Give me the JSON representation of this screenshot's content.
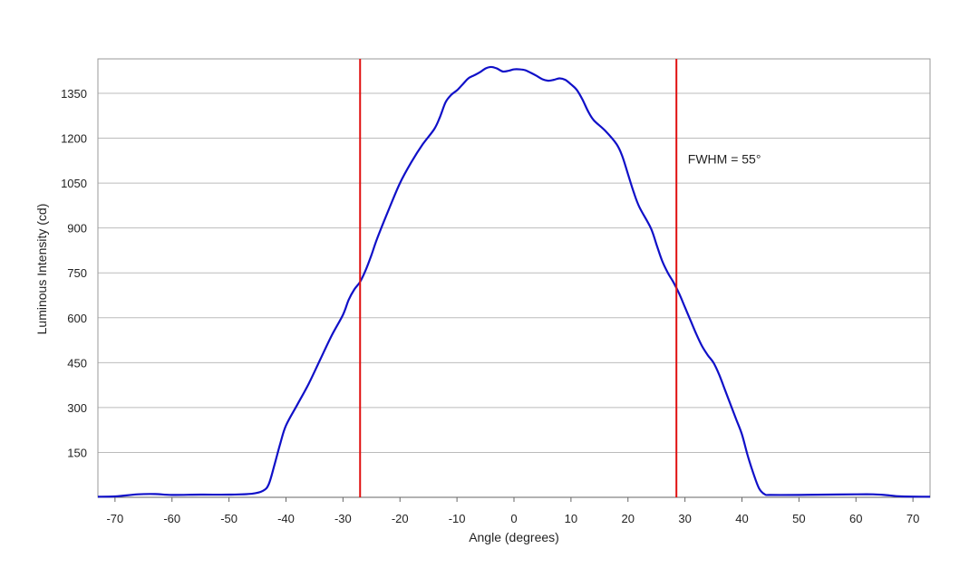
{
  "chart_data": {
    "type": "line",
    "title": "",
    "xlabel": "Angle (degrees)",
    "ylabel": "Luminous Intensity (cd)",
    "xlim": [
      -73,
      73
    ],
    "ylim": [
      0,
      1465
    ],
    "x_ticks": [
      -70,
      -60,
      -50,
      -40,
      -30,
      -20,
      -10,
      0,
      10,
      20,
      30,
      40,
      50,
      60,
      70
    ],
    "y_ticks": [
      150,
      300,
      450,
      600,
      750,
      900,
      1050,
      1200,
      1350
    ],
    "grid": "horizontal",
    "colors": {
      "curve": "#1010c8",
      "markers": "#e01010",
      "grid": "#bbbbbb",
      "frame": "#999999"
    },
    "series": [
      {
        "points": [
          [
            -73,
            2
          ],
          [
            -70,
            3
          ],
          [
            -66,
            10
          ],
          [
            -63,
            11
          ],
          [
            -60,
            8
          ],
          [
            -55,
            9
          ],
          [
            -50,
            9
          ],
          [
            -46,
            12
          ],
          [
            -44,
            22
          ],
          [
            -43,
            45
          ],
          [
            -42,
            110
          ],
          [
            -41,
            180
          ],
          [
            -40,
            240
          ],
          [
            -38,
            310
          ],
          [
            -36,
            380
          ],
          [
            -34,
            460
          ],
          [
            -32,
            540
          ],
          [
            -30,
            610
          ],
          [
            -29,
            660
          ],
          [
            -28,
            695
          ],
          [
            -27,
            720
          ],
          [
            -26,
            760
          ],
          [
            -25,
            810
          ],
          [
            -24,
            865
          ],
          [
            -22,
            960
          ],
          [
            -20,
            1050
          ],
          [
            -18,
            1120
          ],
          [
            -16,
            1180
          ],
          [
            -14,
            1230
          ],
          [
            -13,
            1270
          ],
          [
            -12,
            1320
          ],
          [
            -11,
            1345
          ],
          [
            -10,
            1360
          ],
          [
            -9,
            1380
          ],
          [
            -8,
            1400
          ],
          [
            -7,
            1410
          ],
          [
            -6,
            1420
          ],
          [
            -5,
            1433
          ],
          [
            -4,
            1438
          ],
          [
            -3,
            1433
          ],
          [
            -2,
            1423
          ],
          [
            -1,
            1425
          ],
          [
            0,
            1430
          ],
          [
            1,
            1430
          ],
          [
            2,
            1427
          ],
          [
            3,
            1418
          ],
          [
            4,
            1408
          ],
          [
            5,
            1397
          ],
          [
            6,
            1392
          ],
          [
            7,
            1395
          ],
          [
            8,
            1400
          ],
          [
            9,
            1395
          ],
          [
            10,
            1380
          ],
          [
            11,
            1362
          ],
          [
            12,
            1330
          ],
          [
            13,
            1290
          ],
          [
            14,
            1260
          ],
          [
            16,
            1225
          ],
          [
            18,
            1180
          ],
          [
            19,
            1140
          ],
          [
            20,
            1080
          ],
          [
            21,
            1020
          ],
          [
            22,
            970
          ],
          [
            24,
            900
          ],
          [
            25,
            845
          ],
          [
            26,
            790
          ],
          [
            27,
            750
          ],
          [
            28,
            718
          ],
          [
            29,
            680
          ],
          [
            30,
            635
          ],
          [
            31,
            590
          ],
          [
            32,
            545
          ],
          [
            33,
            505
          ],
          [
            34,
            475
          ],
          [
            35,
            450
          ],
          [
            36,
            410
          ],
          [
            37,
            360
          ],
          [
            38,
            310
          ],
          [
            39,
            260
          ],
          [
            40,
            210
          ],
          [
            41,
            140
          ],
          [
            42,
            80
          ],
          [
            43,
            30
          ],
          [
            44,
            10
          ],
          [
            45,
            8
          ],
          [
            50,
            8
          ],
          [
            55,
            9
          ],
          [
            60,
            10
          ],
          [
            63,
            10
          ],
          [
            65,
            8
          ],
          [
            68,
            3
          ],
          [
            73,
            2
          ]
        ]
      }
    ],
    "vertical_lines": [
      -27,
      28.5
    ],
    "annotations": [
      {
        "text": "FWHM = 55°",
        "x": 30.5,
        "y": 1115
      }
    ]
  }
}
